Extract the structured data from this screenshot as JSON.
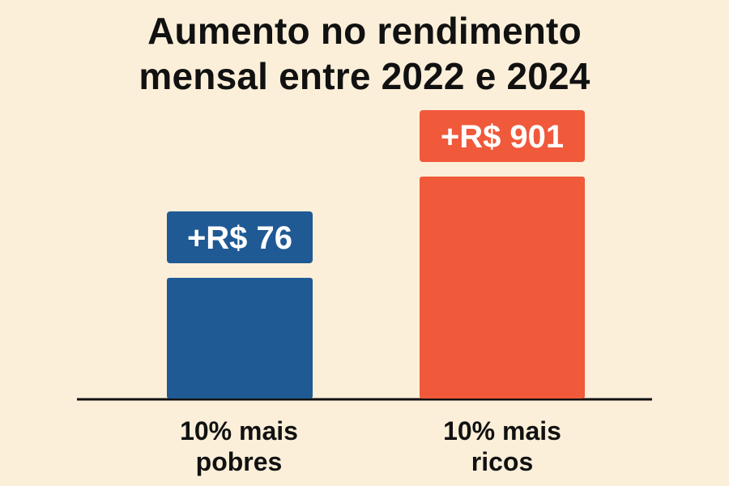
{
  "chart_data": {
    "type": "bar",
    "title_lines": [
      "Aumento no rendimento",
      "mensal entre 2022 e 2024"
    ],
    "categories": [
      {
        "lines": [
          "10% mais",
          "pobres"
        ]
      },
      {
        "lines": [
          "10% mais",
          "ricos"
        ]
      }
    ],
    "values": [
      76,
      901
    ],
    "value_labels": [
      "+R$ 76",
      "+R$ 901"
    ],
    "colors": [
      "#1f5a94",
      "#f0593a"
    ],
    "xlabel": "",
    "ylabel": "",
    "grid": false
  }
}
